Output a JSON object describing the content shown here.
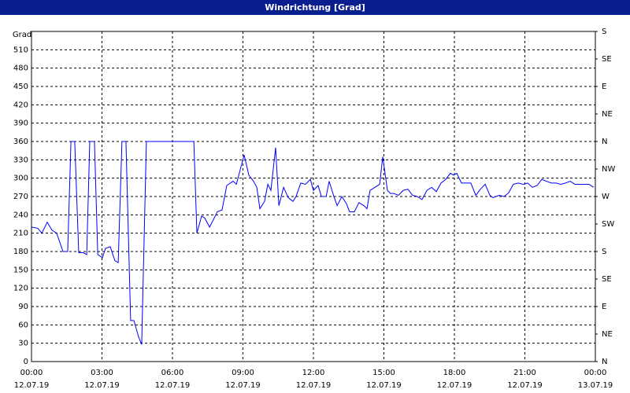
{
  "chart_data": {
    "type": "line",
    "title": "Windrichtung [Grad]",
    "y_label": "Grad",
    "x": [
      0,
      0.27,
      0.44,
      0.67,
      0.87,
      1.07,
      1.34,
      1.54,
      1.68,
      1.84,
      2.01,
      2.21,
      2.35,
      2.48,
      2.68,
      2.82,
      3.02,
      3.15,
      3.35,
      3.55,
      3.69,
      3.85,
      4.02,
      4.22,
      4.36,
      4.56,
      4.69,
      4.89,
      6.91,
      7.04,
      7.24,
      7.37,
      7.58,
      7.78,
      7.91,
      8.11,
      8.31,
      8.58,
      8.72,
      9.05,
      9.25,
      9.45,
      9.59,
      9.72,
      9.92,
      10.06,
      10.19,
      10.39,
      10.53,
      10.73,
      10.93,
      11.13,
      11.26,
      11.46,
      11.66,
      11.87,
      12.0,
      12.2,
      12.34,
      12.54,
      12.67,
      12.87,
      13.01,
      13.21,
      13.41,
      13.54,
      13.74,
      13.94,
      14.15,
      14.28,
      14.41,
      14.62,
      14.82,
      14.95,
      15.15,
      15.28,
      15.42,
      15.62,
      15.82,
      16.02,
      16.22,
      16.42,
      16.62,
      16.83,
      17.03,
      17.23,
      17.43,
      17.63,
      17.83,
      17.97,
      18.1,
      18.3,
      18.5,
      18.7,
      18.91,
      19.11,
      19.31,
      19.51,
      19.64,
      19.91,
      20.11,
      20.31,
      20.51,
      20.72,
      20.92,
      21.12,
      21.32,
      21.52,
      21.72,
      21.92,
      22.12,
      22.33,
      22.53,
      22.73,
      22.93,
      23.13,
      23.33,
      23.53,
      23.73,
      23.93
    ],
    "series": [
      {
        "name": "Windrichtung",
        "color": "#0000ff",
        "values": [
          220,
          218,
          210,
          228,
          215,
          210,
          180,
          180,
          360,
          360,
          178,
          178,
          175,
          360,
          360,
          175,
          170,
          185,
          188,
          165,
          162,
          360,
          360,
          67,
          67,
          40,
          28,
          360,
          360,
          210,
          238,
          235,
          220,
          235,
          245,
          248,
          288,
          295,
          290,
          338,
          305,
          295,
          285,
          250,
          262,
          290,
          280,
          350,
          255,
          285,
          268,
          262,
          270,
          292,
          290,
          298,
          280,
          288,
          270,
          270,
          295,
          270,
          255,
          270,
          258,
          245,
          245,
          260,
          255,
          250,
          280,
          285,
          290,
          335,
          280,
          275,
          275,
          272,
          280,
          282,
          272,
          270,
          265,
          280,
          285,
          278,
          292,
          298,
          308,
          305,
          308,
          292,
          292,
          292,
          272,
          282,
          290,
          272,
          268,
          272,
          270,
          276,
          290,
          292,
          290,
          292,
          285,
          288,
          298,
          295,
          292,
          292,
          290,
          292,
          295,
          290,
          290,
          290,
          290,
          285
        ]
      }
    ],
    "xlim": [
      0,
      24
    ],
    "xticks": [
      {
        "value": 0,
        "label": "00:00"
      },
      {
        "value": 3,
        "label": "03:00"
      },
      {
        "value": 6,
        "label": "06:00"
      },
      {
        "value": 9,
        "label": "09:00"
      },
      {
        "value": 12,
        "label": "12:00"
      },
      {
        "value": 15,
        "label": "15:00"
      },
      {
        "value": 18,
        "label": "18:00"
      },
      {
        "value": 21,
        "label": "21:00"
      },
      {
        "value": 24,
        "label": "00:00"
      }
    ],
    "xtick_dates": [
      "12.07.19",
      "12.07.19",
      "12.07.19",
      "12.07.19",
      "12.07.19",
      "12.07.19",
      "12.07.19",
      "12.07.19",
      "13.07.19"
    ],
    "ylim": [
      0,
      540
    ],
    "yticks": [
      0,
      30,
      60,
      90,
      120,
      150,
      180,
      210,
      240,
      270,
      300,
      330,
      360,
      390,
      420,
      450,
      480,
      510
    ],
    "y2lim": [
      0,
      540
    ],
    "y2ticks": [
      {
        "value": 0,
        "label": "N"
      },
      {
        "value": 45,
        "label": "NE"
      },
      {
        "value": 90,
        "label": "E"
      },
      {
        "value": 135,
        "label": "SE"
      },
      {
        "value": 180,
        "label": "S"
      },
      {
        "value": 225,
        "label": "SW"
      },
      {
        "value": 270,
        "label": "W"
      },
      {
        "value": 315,
        "label": "NW"
      },
      {
        "value": 360,
        "label": "N"
      },
      {
        "value": 405,
        "label": "NE"
      },
      {
        "value": 450,
        "label": "E"
      },
      {
        "value": 495,
        "label": "SE"
      },
      {
        "value": 540,
        "label": "S"
      }
    ],
    "grid": true
  }
}
